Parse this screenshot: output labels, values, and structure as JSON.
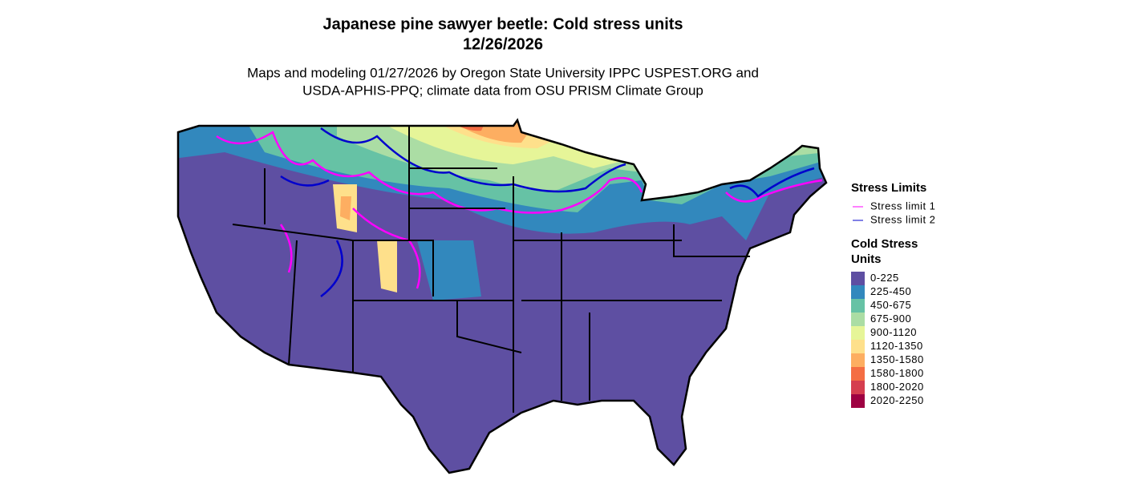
{
  "header": {
    "title_lines": [
      "Japanese pine sawyer beetle: Cold stress units",
      "12/26/2026"
    ],
    "subtitle_lines": [
      "Maps and modeling 01/27/2026 by Oregon State University IPPC USPEST.ORG and",
      "USDA-APHIS-PPQ; climate data from OSU PRISM Climate Group"
    ]
  },
  "legend_limits": {
    "title": "Stress Limits",
    "items": [
      {
        "label": "Stress limit 1",
        "color": "#ff00ff"
      },
      {
        "label": "Stress limit 2",
        "color": "#0000cd"
      }
    ]
  },
  "legend_units": {
    "title": "Cold Stress Units",
    "items": [
      {
        "label": "0-225",
        "color": "#5e4fa2"
      },
      {
        "label": "225-450",
        "color": "#3288bd"
      },
      {
        "label": "450-675",
        "color": "#66c2a5"
      },
      {
        "label": "675-900",
        "color": "#abdda4"
      },
      {
        "label": "900-1120",
        "color": "#e6f598"
      },
      {
        "label": "1120-1350",
        "color": "#fee08b"
      },
      {
        "label": "1350-1580",
        "color": "#fdae61"
      },
      {
        "label": "1580-1800",
        "color": "#f46d43"
      },
      {
        "label": "1800-2020",
        "color": "#d53e4f"
      },
      {
        "label": "2020-2250",
        "color": "#9e0142"
      }
    ]
  }
}
